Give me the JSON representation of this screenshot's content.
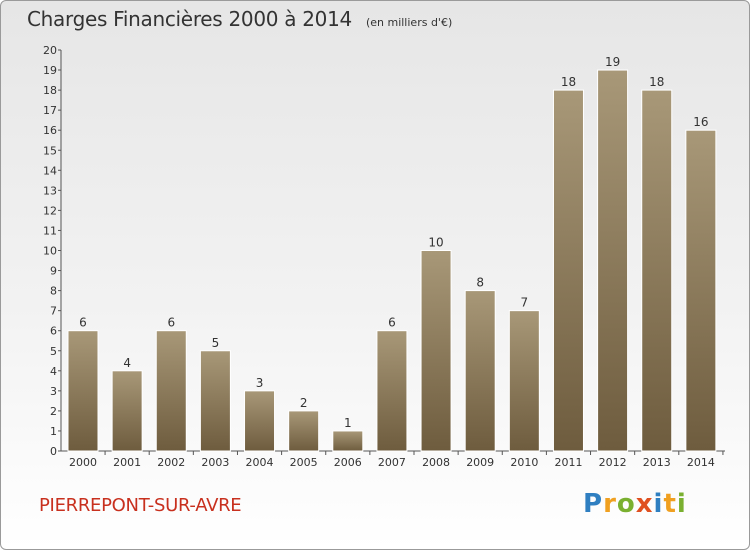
{
  "header": {
    "title": "Charges Financières 2000 à 2014",
    "unit": "(en milliers d'€)"
  },
  "footer": {
    "commune": "PIERREPONT-SUR-AVRE",
    "brand": "Proxiti"
  },
  "colors": {
    "bar_top": "#a89878",
    "bar_bottom": "#6e5c3e",
    "commune": "#c8301e",
    "brand_letters": [
      "#2f7fc1",
      "#f0a020",
      "#7ab030",
      "#e05020",
      "#2f7fc1",
      "#f0a020",
      "#7ab030"
    ]
  },
  "chart_data": {
    "type": "bar",
    "categories": [
      "2000",
      "2001",
      "2002",
      "2003",
      "2004",
      "2005",
      "2006",
      "2007",
      "2008",
      "2009",
      "2010",
      "2011",
      "2012",
      "2013",
      "2014"
    ],
    "values": [
      6,
      4,
      6,
      5,
      3,
      2,
      1,
      6,
      10,
      8,
      7,
      18,
      19,
      18,
      16
    ],
    "title": "Charges Financières 2000 à 2014",
    "ylabel": "",
    "xlabel": "",
    "ylim": [
      0,
      20
    ],
    "yticks": [
      0,
      1,
      2,
      3,
      4,
      5,
      6,
      7,
      8,
      9,
      10,
      11,
      12,
      13,
      14,
      15,
      16,
      17,
      18,
      19,
      20
    ],
    "grid": false,
    "data_labels": true
  }
}
